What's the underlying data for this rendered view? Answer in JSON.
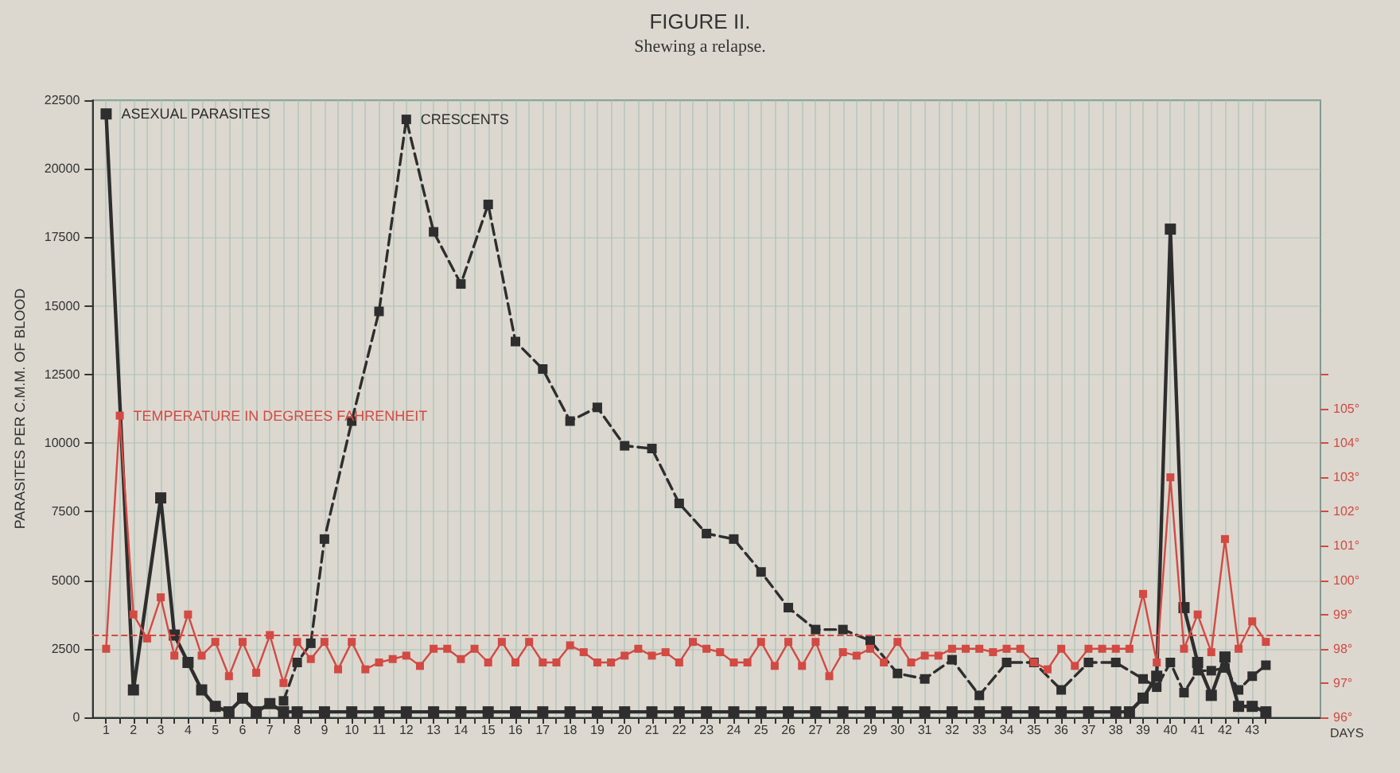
{
  "chart_data": {
    "type": "line",
    "title": "FIGURE II.",
    "subtitle": "Shewing a relapse.",
    "xlabel": "DAYS",
    "ylabel": "PARASITES PER C.M.M. OF BLOOD",
    "xlim": [
      0.5,
      45.5
    ],
    "xticks": [
      1,
      {
        "value": 1.5,
        "label": null
      },
      2,
      {
        "value": 2.5,
        "label": null
      },
      3,
      {
        "value": 3.5,
        "label": null
      },
      4,
      {
        "value": 4.5,
        "label": null
      },
      5,
      {
        "value": 5.5,
        "label": null
      },
      6,
      {
        "value": 6.5,
        "label": null
      },
      7,
      {
        "value": 7.5,
        "label": null
      },
      8,
      {
        "value": 8.5,
        "label": null
      },
      9,
      {
        "value": 9.5,
        "label": null
      },
      10,
      {
        "value": 10.5,
        "label": null
      },
      11,
      {
        "value": 11.5,
        "label": null
      },
      12,
      {
        "value": 12.5,
        "label": null
      },
      13,
      {
        "value": 13.5,
        "label": null
      },
      14,
      {
        "value": 14.5,
        "label": null
      },
      15,
      {
        "value": 15.5,
        "label": null
      },
      16,
      {
        "value": 16.5,
        "label": null
      },
      17,
      {
        "value": 17.5,
        "label": null
      },
      18,
      {
        "value": 18.5,
        "label": null
      },
      19,
      {
        "value": 19.5,
        "label": null
      },
      20,
      {
        "value": 20.5,
        "label": null
      },
      21,
      {
        "value": 21.5,
        "label": null
      },
      22,
      {
        "value": 22.5,
        "label": null
      },
      23,
      {
        "value": 23.5,
        "label": null
      },
      24,
      {
        "value": 24.5,
        "label": null
      },
      25,
      {
        "value": 25.5,
        "label": null
      },
      26,
      {
        "value": 26.5,
        "label": null
      },
      27,
      {
        "value": 27.5,
        "label": null
      },
      28,
      {
        "value": 28.5,
        "label": null
      },
      29,
      {
        "value": 29.5,
        "label": null
      },
      30,
      {
        "value": 30.5,
        "label": null
      },
      31,
      {
        "value": 31.5,
        "label": null
      },
      32,
      {
        "value": 32.5,
        "label": null
      },
      33,
      {
        "value": 33.5,
        "label": null
      },
      34,
      {
        "value": 34.5,
        "label": null
      },
      35,
      {
        "value": 35.5,
        "label": null
      },
      36,
      {
        "value": 36.5,
        "label": null
      },
      37,
      {
        "value": 37.5,
        "label": null
      },
      38,
      {
        "value": 38.5,
        "label": null
      },
      39,
      {
        "value": 39.5,
        "label": null
      },
      40,
      {
        "value": 40.5,
        "label": null
      },
      41,
      {
        "value": 41.5,
        "label": null
      },
      42,
      {
        "value": 42.5,
        "label": null
      },
      43,
      {
        "value": 43.5,
        "label": null
      }
    ],
    "ylim": [
      0,
      22500
    ],
    "yticks": [
      0,
      2500,
      5000,
      7500,
      10000,
      12500,
      15000,
      17500,
      20000,
      22500
    ],
    "y2lim": [
      96,
      114
    ],
    "y2ticks": [
      {
        "value": 96,
        "label": "96°"
      },
      {
        "value": 97,
        "label": "97°"
      },
      {
        "value": 98,
        "label": "98°"
      },
      {
        "value": 99,
        "label": "99°"
      },
      {
        "value": 100,
        "label": "100°"
      },
      {
        "value": 101,
        "label": "101°"
      },
      {
        "value": 102,
        "label": "102°"
      },
      {
        "value": 103,
        "label": "103°"
      },
      {
        "value": 104,
        "label": "104°"
      },
      {
        "value": 105,
        "label": "105°"
      },
      {
        "value": 106,
        "label": null
      }
    ],
    "grid": true,
    "marker": "square",
    "ref_lines": [
      {
        "axis": "y2",
        "value": 98.4,
        "color": "#d24a43",
        "line_style": "dashed"
      }
    ],
    "series": [
      {
        "name": "ASEXUAL PARASITES",
        "color": "#2e2e2e",
        "line_style": "solid",
        "x": [
          1,
          2,
          3,
          3.5,
          4,
          4.5,
          5,
          5.5,
          6,
          6.5,
          7,
          7.5,
          8,
          9,
          10,
          11,
          12,
          13,
          14,
          15,
          16,
          17,
          18,
          19,
          20,
          21,
          22,
          23,
          24,
          25,
          26,
          27,
          28,
          29,
          30,
          31,
          32,
          33,
          34,
          35,
          36,
          37,
          38,
          38.5,
          39,
          39.5,
          40,
          40.5,
          41,
          41.5,
          42,
          42.5,
          43,
          43.5
        ],
        "values": [
          22000,
          1000,
          8000,
          3000,
          2000,
          1000,
          400,
          200,
          700,
          200,
          500,
          200,
          200,
          200,
          200,
          200,
          200,
          200,
          200,
          200,
          200,
          200,
          200,
          200,
          200,
          200,
          200,
          200,
          200,
          200,
          200,
          200,
          200,
          200,
          200,
          200,
          200,
          200,
          200,
          200,
          200,
          200,
          200,
          200,
          700,
          1500,
          17800,
          4000,
          2000,
          800,
          2200,
          400,
          400,
          200
        ]
      },
      {
        "name": "CRESCENTS",
        "color": "#2e2e2e",
        "line_style": "dashed",
        "x": [
          7.5,
          8,
          8.5,
          9,
          10,
          11,
          12,
          13,
          14,
          15,
          16,
          17,
          18,
          19,
          20,
          21,
          22,
          23,
          24,
          25,
          26,
          27,
          28,
          29,
          30,
          31,
          32,
          33,
          34,
          35,
          36,
          37,
          38,
          39,
          39.5,
          40,
          40.5,
          41,
          41.5,
          42,
          42.5,
          43,
          43.5
        ],
        "values": [
          600,
          2000,
          2700,
          6500,
          10800,
          14800,
          21800,
          17700,
          15800,
          18700,
          13700,
          12700,
          10800,
          11300,
          9900,
          9800,
          7800,
          6700,
          6500,
          5300,
          4000,
          3200,
          3200,
          2800,
          1600,
          1400,
          2100,
          800,
          2000,
          2000,
          1000,
          2000,
          2000,
          1400,
          1100,
          2000,
          900,
          1700,
          1700,
          1800,
          1000,
          1500,
          1900
        ]
      },
      {
        "name": "TEMPERATURE IN DEGREES FAHRENHEIT",
        "color": "#d24a43",
        "line_style": "solid",
        "axis": "y2",
        "x": [
          1,
          1.5,
          2,
          2.5,
          3,
          3.5,
          4,
          4.5,
          5,
          5.5,
          6,
          6.5,
          7,
          7.5,
          8,
          8.5,
          9,
          9.5,
          10,
          10.5,
          11,
          11.5,
          12,
          12.5,
          13,
          13.5,
          14,
          14.5,
          15,
          15.5,
          16,
          16.5,
          17,
          17.5,
          18,
          18.5,
          19,
          19.5,
          20,
          20.5,
          21,
          21.5,
          22,
          22.5,
          23,
          23.5,
          24,
          24.5,
          25,
          25.5,
          26,
          26.5,
          27,
          27.5,
          28,
          28.5,
          29,
          29.5,
          30,
          30.5,
          31,
          31.5,
          32,
          32.5,
          33,
          33.5,
          34,
          34.5,
          35,
          35.5,
          36,
          36.5,
          37,
          37.5,
          38,
          38.5,
          39,
          39.5,
          40,
          40.5,
          41,
          41.5,
          42,
          42.5,
          43,
          43.5
        ],
        "values": [
          98.0,
          104.8,
          99.0,
          98.3,
          99.5,
          97.8,
          99.0,
          97.8,
          98.2,
          97.2,
          98.2,
          97.3,
          98.4,
          97.0,
          98.2,
          97.7,
          98.2,
          97.4,
          98.2,
          97.4,
          97.6,
          97.7,
          97.8,
          97.5,
          98.0,
          98.0,
          97.7,
          98.0,
          97.6,
          98.2,
          97.6,
          98.2,
          97.6,
          97.6,
          98.1,
          97.9,
          97.6,
          97.6,
          97.8,
          98.0,
          97.8,
          97.9,
          97.6,
          98.2,
          98.0,
          97.9,
          97.6,
          97.6,
          98.2,
          97.5,
          98.2,
          97.5,
          98.2,
          97.2,
          97.9,
          97.8,
          98.0,
          97.6,
          98.2,
          97.6,
          97.8,
          97.8,
          98.0,
          98.0,
          98.0,
          97.9,
          98.0,
          98.0,
          97.6,
          97.4,
          98.0,
          97.5,
          98.0,
          98.0,
          98.0,
          98.0,
          99.6,
          97.6,
          103.0,
          98.0,
          99.0,
          97.9,
          101.2,
          98.0,
          98.8,
          98.2
        ]
      }
    ]
  }
}
